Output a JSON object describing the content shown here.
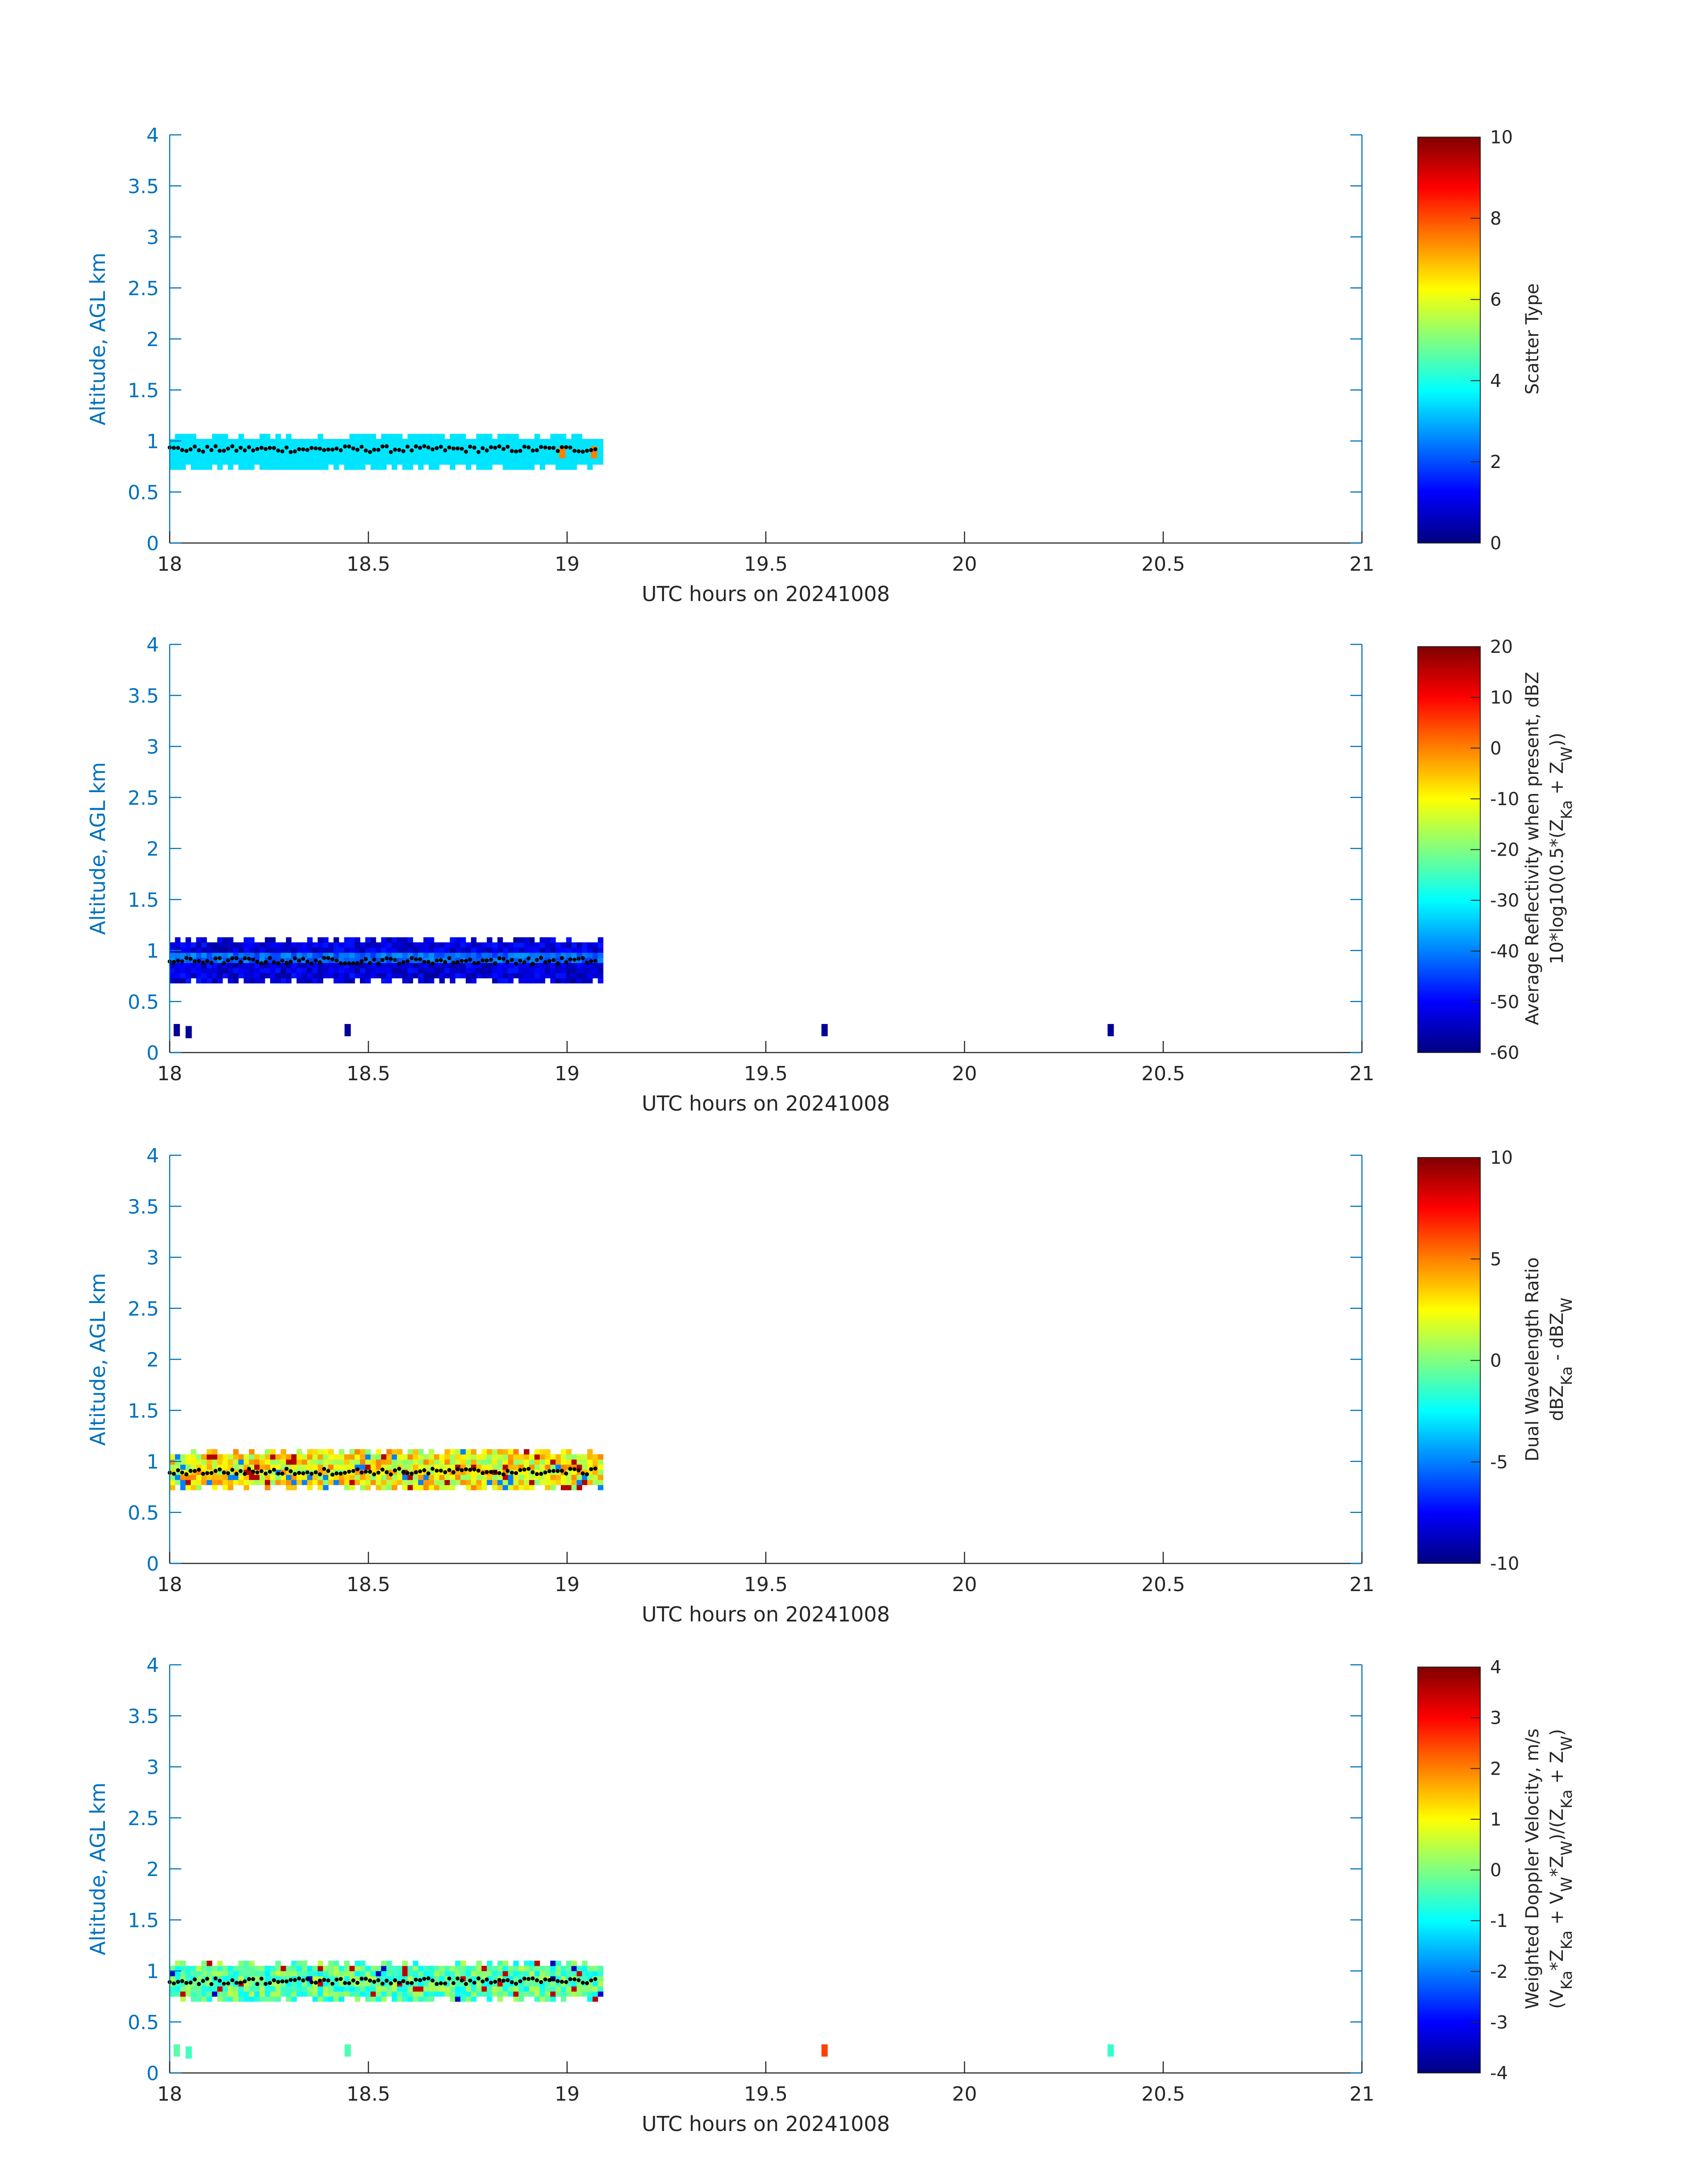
{
  "figure": {
    "colors": {
      "axis": "#0072BD",
      "axis_label": "#0072BD",
      "text": "#262626",
      "colorbar_frame": "#262626",
      "marker": "#000000"
    }
  },
  "chart_data": [
    {
      "type": "heatmap",
      "xlabel": "UTC hours on 20241008",
      "ylabel": "Altitude, AGL km",
      "xlim": [
        18,
        21
      ],
      "ylim": [
        0,
        4
      ],
      "x_ticks": [
        "18",
        "18.5",
        "19",
        "19.5",
        "20",
        "20.5",
        "21"
      ],
      "y_ticks": [
        "0",
        "0.5",
        "1",
        "1.5",
        "2",
        "2.5",
        "3",
        "3.5",
        "4"
      ],
      "colormap": "jet",
      "colorbar": {
        "label": "Scatter Type",
        "label2": "",
        "clim": [
          0,
          10
        ],
        "ticks": [
          "0",
          "2",
          "4",
          "6",
          "8",
          "10"
        ]
      },
      "cloud_layer": {
        "x_range": [
          18.0,
          19.08
        ],
        "z_bottom_km": 0.72,
        "z_top_km": 1.05,
        "typical_value": 3.5
      },
      "notable_points": [
        {
          "x": 18.98,
          "z": 0.85,
          "value": 7.5
        },
        {
          "x": 19.06,
          "z": 0.85,
          "value": 7.5
        }
      ],
      "cloud_top_marker": {
        "x_range": [
          18.0,
          19.08
        ],
        "z_km": 0.92
      }
    },
    {
      "type": "heatmap",
      "xlabel": "UTC hours on 20241008",
      "ylabel": "Altitude, AGL km",
      "xlim": [
        18,
        21
      ],
      "ylim": [
        0,
        4
      ],
      "x_ticks": [
        "18",
        "18.5",
        "19",
        "19.5",
        "20",
        "20.5",
        "21"
      ],
      "y_ticks": [
        "0",
        "0.5",
        "1",
        "1.5",
        "2",
        "2.5",
        "3",
        "3.5",
        "4"
      ],
      "colormap": "jet",
      "colorbar": {
        "label": "Average Reflectivity when present, dBZ",
        "label2": "10*log10(0.5*(Z_Ka + Z_W))",
        "clim": [
          -60,
          20
        ],
        "ticks": [
          "-60",
          "-50",
          "-40",
          "-30",
          "-20",
          "-10",
          "0",
          "10",
          "20"
        ]
      },
      "cloud_layer": {
        "x_range": [
          18.0,
          19.08
        ],
        "z_bottom_km": 0.68,
        "z_top_km": 1.1,
        "typical_value": -50
      },
      "surface_echoes": [
        {
          "x": 18.01,
          "z": 0.22,
          "value": -58
        },
        {
          "x": 18.04,
          "z": 0.2,
          "value": -58
        },
        {
          "x": 18.44,
          "z": 0.22,
          "value": -58
        },
        {
          "x": 19.64,
          "z": 0.22,
          "value": -58
        },
        {
          "x": 20.36,
          "z": 0.22,
          "value": -58
        }
      ],
      "cloud_top_marker": {
        "x_range": [
          18.0,
          19.08
        ],
        "z_km": 0.9
      }
    },
    {
      "type": "heatmap",
      "xlabel": "UTC hours on 20241008",
      "ylabel": "Altitude, AGL km",
      "xlim": [
        18,
        21
      ],
      "ylim": [
        0,
        4
      ],
      "x_ticks": [
        "18",
        "18.5",
        "19",
        "19.5",
        "20",
        "20.5",
        "21"
      ],
      "y_ticks": [
        "0",
        "0.5",
        "1",
        "1.5",
        "2",
        "2.5",
        "3",
        "3.5",
        "4"
      ],
      "colormap": "jet",
      "colorbar": {
        "label": "Dual Wavelength Ratio",
        "label2": "dBZ_Ka - dBZ_W",
        "clim": [
          -10,
          10
        ],
        "ticks": [
          "-10",
          "-5",
          "0",
          "5",
          "10"
        ]
      },
      "cloud_layer": {
        "x_range": [
          18.0,
          19.08
        ],
        "z_bottom_km": 0.72,
        "z_top_km": 1.1,
        "typical_value": 2.5
      },
      "cloud_top_marker": {
        "x_range": [
          18.0,
          19.08
        ],
        "z_km": 0.9
      }
    },
    {
      "type": "heatmap",
      "xlabel": "UTC hours on 20241008",
      "ylabel": "Altitude, AGL km",
      "xlim": [
        18,
        21
      ],
      "ylim": [
        0,
        4
      ],
      "x_ticks": [
        "18",
        "18.5",
        "19",
        "19.5",
        "20",
        "20.5",
        "21"
      ],
      "y_ticks": [
        "0",
        "0.5",
        "1",
        "1.5",
        "2",
        "2.5",
        "3",
        "3.5",
        "4"
      ],
      "colormap": "jet",
      "colorbar": {
        "label": "Weighted Doppler Velocity, m/s",
        "label2": "(V_Ka*Z_Ka + V_W*Z_W)/(Z_Ka + Z_W)",
        "clim": [
          -4,
          4
        ],
        "ticks": [
          "-4",
          "-3",
          "-2",
          "-1",
          "0",
          "1",
          "2",
          "3",
          "4"
        ]
      },
      "cloud_layer": {
        "x_range": [
          18.0,
          19.08
        ],
        "z_bottom_km": 0.7,
        "z_top_km": 1.1,
        "typical_value": -0.3
      },
      "surface_echoes": [
        {
          "x": 18.01,
          "z": 0.22,
          "value": -0.3
        },
        {
          "x": 18.04,
          "z": 0.2,
          "value": -0.5
        },
        {
          "x": 18.44,
          "z": 0.22,
          "value": -0.4
        },
        {
          "x": 19.64,
          "z": 0.22,
          "value": 2.5
        },
        {
          "x": 20.36,
          "z": 0.22,
          "value": -0.6
        }
      ],
      "cloud_top_marker": {
        "x_range": [
          18.0,
          19.08
        ],
        "z_km": 0.9
      }
    }
  ]
}
